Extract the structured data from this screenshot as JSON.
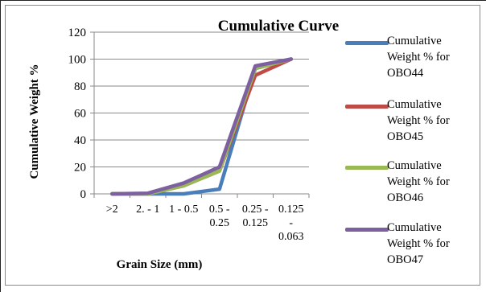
{
  "chart_data": {
    "type": "line",
    "title": "Cumulative Curve",
    "xlabel": "Grain Size (mm)",
    "ylabel": "Cumulative Weight %",
    "categories": [
      ">2",
      "2. - 1",
      "1 - 0.5",
      "0.5 - 0.25",
      "0.25 - 0.125",
      "0.125 - 0.063"
    ],
    "category_lines": [
      [
        ">2"
      ],
      [
        "2. - 1"
      ],
      [
        "1 - 0.5"
      ],
      [
        "0.5 -",
        "0.25"
      ],
      [
        "0.25 -",
        "0.125"
      ],
      [
        "0.125",
        "-",
        "0.063"
      ]
    ],
    "ylim": [
      0,
      120
    ],
    "yticks": [
      "0",
      "20",
      "40",
      "60",
      "80",
      "100",
      "120"
    ],
    "grid": true,
    "legend_position": "right",
    "series": [
      {
        "name": "Cumulative Weight % for OBO44",
        "label_lines": [
          "Cumulative",
          "Weight % for",
          "OBO44"
        ],
        "color": "#4a7ebb",
        "values": [
          0,
          0,
          0,
          3.5,
          93,
          100
        ]
      },
      {
        "name": "Cumulative Weight % for OBO45",
        "label_lines": [
          "Cumulative",
          "Weight % for",
          "OBO45"
        ],
        "color": "#be4b48",
        "values": [
          0,
          0,
          6,
          17,
          88,
          100
        ]
      },
      {
        "name": "Cumulative Weight % for OBO46",
        "label_lines": [
          "Cumulative",
          "Weight % for",
          "OBO46"
        ],
        "color": "#98b954",
        "values": [
          0,
          0,
          6,
          17,
          93,
          100
        ]
      },
      {
        "name": "Cumulative Weight % for OBO47",
        "label_lines": [
          "Cumulative",
          "Weight % for",
          "OBO47"
        ],
        "color": "#7d60a0",
        "values": [
          0,
          0.5,
          8,
          20,
          95,
          100
        ]
      }
    ]
  }
}
